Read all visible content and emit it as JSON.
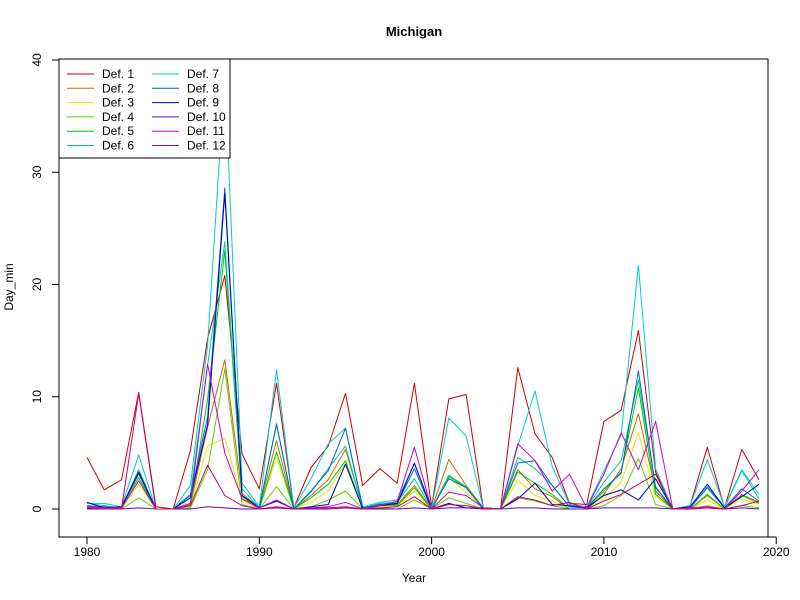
{
  "chart_data": {
    "type": "line",
    "title": "Michigan",
    "xlabel": "Year",
    "ylabel": "Day_min",
    "xlim": [
      1980,
      2019
    ],
    "ylim": [
      0,
      40
    ],
    "x_ticks": [
      1980,
      1990,
      2000,
      2010,
      2020
    ],
    "y_ticks": [
      0,
      10,
      20,
      30,
      40
    ],
    "legend_position": "top-left",
    "legend_columns": 2,
    "x": [
      1980,
      1981,
      1982,
      1983,
      1984,
      1985,
      1986,
      1987,
      1988,
      1989,
      1990,
      1991,
      1992,
      1993,
      1994,
      1995,
      1996,
      1997,
      1998,
      1999,
      2000,
      2001,
      2002,
      2003,
      2004,
      2005,
      2006,
      2007,
      2008,
      2009,
      2010,
      2011,
      2012,
      2013,
      2014,
      2015,
      2016,
      2017,
      2018,
      2019
    ],
    "series": [
      {
        "name": "Def. 1",
        "color": "#CC0000",
        "values": [
          4.6,
          1.7,
          2.6,
          10.4,
          0.2,
          0.0,
          5.2,
          15.2,
          20.8,
          4.9,
          1.8,
          11.2,
          0.1,
          3.7,
          5.6,
          10.3,
          2.1,
          3.6,
          2.3,
          11.2,
          0.2,
          9.8,
          10.2,
          0.1,
          0.0,
          12.6,
          6.7,
          4.6,
          0.5,
          0.4,
          7.8,
          8.8,
          15.9,
          3.3,
          0.0,
          0.3,
          5.5,
          0.1,
          5.3,
          2.6
        ]
      },
      {
        "name": "Def. 2",
        "color": "#CC6600",
        "values": [
          0.2,
          0.1,
          0.1,
          3.1,
          0.0,
          0.0,
          0.4,
          7.3,
          13.3,
          1.4,
          0.1,
          6.1,
          0.0,
          1.2,
          2.6,
          5.3,
          0.1,
          0.4,
          0.4,
          2.1,
          0.0,
          4.4,
          2.1,
          0.1,
          0.0,
          3.5,
          1.8,
          1.1,
          0.0,
          0.0,
          1.3,
          3.6,
          8.5,
          1.6,
          0.0,
          0.0,
          1.2,
          0.0,
          1.3,
          0.6
        ]
      },
      {
        "name": "Def. 3",
        "color": "#E6E600",
        "values": [
          0.1,
          0.0,
          0.0,
          2.2,
          0.0,
          0.0,
          0.2,
          5.6,
          6.3,
          0.8,
          0.0,
          4.6,
          0.0,
          0.6,
          1.6,
          4.1,
          0.0,
          0.2,
          0.2,
          1.6,
          0.0,
          2.8,
          1.5,
          0.0,
          0.0,
          2.6,
          1.2,
          0.7,
          0.0,
          0.0,
          0.9,
          2.4,
          6.8,
          1.1,
          0.0,
          0.0,
          0.8,
          0.0,
          0.9,
          0.4
        ]
      },
      {
        "name": "Def. 4",
        "color": "#66CC00",
        "values": [
          0.0,
          0.0,
          0.0,
          1.0,
          0.0,
          0.0,
          0.1,
          3.5,
          12.5,
          0.4,
          0.0,
          2.0,
          0.0,
          0.2,
          0.8,
          1.6,
          0.0,
          0.1,
          0.0,
          0.8,
          0.0,
          1.0,
          0.5,
          0.0,
          0.0,
          1.0,
          0.7,
          0.3,
          0.0,
          0.0,
          0.3,
          1.2,
          4.5,
          0.4,
          0.0,
          0.0,
          0.3,
          0.0,
          0.3,
          0.1
        ]
      },
      {
        "name": "Def. 5",
        "color": "#00CC00",
        "values": [
          0.1,
          0.0,
          0.0,
          2.8,
          0.0,
          0.0,
          0.3,
          9.8,
          23.0,
          1.1,
          0.0,
          5.1,
          0.0,
          1.0,
          2.2,
          4.3,
          0.0,
          0.3,
          0.3,
          1.9,
          0.0,
          2.9,
          1.9,
          0.0,
          0.0,
          3.3,
          2.3,
          1.3,
          0.0,
          0.0,
          1.6,
          3.3,
          10.8,
          1.3,
          0.0,
          0.0,
          1.3,
          0.0,
          1.2,
          0.5
        ]
      },
      {
        "name": "Def. 6",
        "color": "#00CC99",
        "values": [
          0.5,
          0.3,
          0.1,
          3.5,
          0.0,
          0.0,
          1.3,
          12.8,
          23.8,
          1.8,
          0.1,
          7.5,
          0.0,
          1.5,
          3.6,
          5.6,
          0.1,
          0.5,
          0.6,
          2.7,
          0.0,
          3.0,
          2.0,
          0.1,
          0.0,
          4.6,
          3.6,
          2.1,
          0.2,
          0.1,
          2.4,
          4.3,
          11.5,
          2.0,
          0.0,
          0.1,
          2.0,
          0.1,
          3.4,
          0.9
        ]
      },
      {
        "name": "Def. 7",
        "color": "#00CCCC",
        "values": [
          0.5,
          0.5,
          0.2,
          4.8,
          0.0,
          0.0,
          2.1,
          14.6,
          38.8,
          2.3,
          0.2,
          12.4,
          0.1,
          2.7,
          5.8,
          7.2,
          0.2,
          0.6,
          0.8,
          4.0,
          0.1,
          8.1,
          6.5,
          0.1,
          0.0,
          5.6,
          10.5,
          3.8,
          0.4,
          0.2,
          3.4,
          6.6,
          21.7,
          3.6,
          0.0,
          0.3,
          4.4,
          0.2,
          3.5,
          1.3
        ]
      },
      {
        "name": "Def. 8",
        "color": "#0066CC",
        "values": [
          0.3,
          0.2,
          0.1,
          3.2,
          0.0,
          0.0,
          1.2,
          8.2,
          28.6,
          1.2,
          0.1,
          7.6,
          0.0,
          1.6,
          3.4,
          7.2,
          0.1,
          0.4,
          0.5,
          3.6,
          0.0,
          2.7,
          1.9,
          0.1,
          0.0,
          4.1,
          4.3,
          2.1,
          0.2,
          0.1,
          1.8,
          3.2,
          12.3,
          1.9,
          0.0,
          0.1,
          1.9,
          0.1,
          1.8,
          0.7
        ]
      },
      {
        "name": "Def. 9",
        "color": "#0000CC",
        "values": [
          0.6,
          0.1,
          0.2,
          3.3,
          0.0,
          0.0,
          1.0,
          7.5,
          28.1,
          1.2,
          0.1,
          0.7,
          0.0,
          0.2,
          0.4,
          4.0,
          0.0,
          0.3,
          0.5,
          4.1,
          0.0,
          0.5,
          0.1,
          0.1,
          0.0,
          0.9,
          2.3,
          0.4,
          0.3,
          0.1,
          1.2,
          1.7,
          0.8,
          2.7,
          0.0,
          0.2,
          2.2,
          0.1,
          1.1,
          2.2
        ]
      },
      {
        "name": "Def. 10",
        "color": "#6600CC",
        "values": [
          0.0,
          0.0,
          0.0,
          0.1,
          0.0,
          0.0,
          0.0,
          0.2,
          0.1,
          0.0,
          0.0,
          0.1,
          0.0,
          0.0,
          0.0,
          0.1,
          0.0,
          0.0,
          0.0,
          0.1,
          0.0,
          0.1,
          0.1,
          0.0,
          0.0,
          0.1,
          0.1,
          0.0,
          0.0,
          0.0,
          0.1,
          0.1,
          0.1,
          0.1,
          0.0,
          0.0,
          0.1,
          0.0,
          0.1,
          0.0
        ]
      },
      {
        "name": "Def. 11",
        "color": "#CC00CC",
        "values": [
          0.2,
          0.1,
          0.1,
          2.5,
          0.0,
          0.0,
          0.5,
          12.9,
          5.0,
          0.9,
          0.1,
          0.8,
          0.0,
          0.1,
          0.2,
          0.6,
          0.0,
          0.3,
          0.7,
          5.5,
          0.0,
          1.5,
          1.2,
          0.1,
          0.0,
          5.8,
          4.3,
          1.6,
          3.1,
          0.1,
          3.1,
          6.8,
          3.5,
          7.8,
          0.0,
          0.1,
          0.2,
          0.0,
          1.6,
          3.5
        ]
      },
      {
        "name": "Def. 12",
        "color": "#CC0066",
        "values": [
          0.1,
          0.0,
          0.0,
          10.3,
          0.0,
          0.0,
          0.3,
          3.9,
          1.2,
          0.3,
          0.0,
          0.2,
          0.0,
          0.1,
          0.1,
          0.2,
          0.0,
          0.1,
          0.2,
          1.1,
          0.0,
          0.4,
          0.3,
          0.0,
          0.0,
          1.1,
          0.8,
          0.3,
          0.6,
          0.0,
          0.7,
          1.3,
          2.2,
          3.1,
          0.0,
          0.0,
          0.1,
          0.0,
          0.3,
          0.7
        ]
      }
    ]
  }
}
